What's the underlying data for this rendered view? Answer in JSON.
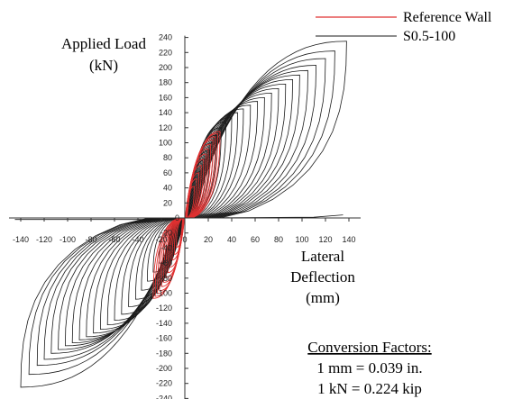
{
  "chart_data": {
    "type": "line",
    "title": "",
    "xlabel": [
      "Lateral",
      "Deflection",
      "(mm)"
    ],
    "ylabel": [
      "Applied Load",
      "(kN)"
    ],
    "xlim": [
      -150,
      150
    ],
    "ylim": [
      -240,
      240
    ],
    "x_ticks": [
      -140,
      -120,
      -100,
      -80,
      -60,
      -40,
      -20,
      0,
      20,
      40,
      60,
      80,
      100,
      120,
      140
    ],
    "y_ticks": [
      240,
      220,
      200,
      180,
      160,
      140,
      120,
      100,
      80,
      60,
      40,
      20,
      0,
      -20,
      -40,
      -60,
      -80,
      -100,
      -120,
      -140,
      -160,
      -180,
      -200,
      -220,
      -240
    ],
    "x_tick_labels": [
      "-140",
      "-120",
      "-100",
      "-80",
      "-60",
      "-40",
      "-20",
      "0",
      "20",
      "40",
      "60",
      "80",
      "100",
      "120",
      "140"
    ],
    "y_tick_labels": [
      "240",
      "220",
      "200",
      "180",
      "160",
      "140",
      "120",
      "100",
      "80",
      "60",
      "40",
      "20",
      "0",
      "-20",
      "-40",
      "-60",
      "-80",
      "-100",
      "-120",
      "-140",
      "-160",
      "-180",
      "-200",
      "-220",
      "-240"
    ],
    "grid": false,
    "legend_position": "top-right",
    "series": [
      {
        "name": "Reference Wall",
        "color": "#e03030",
        "peak_positive": [
          30,
          115
        ],
        "peak_negative": [
          -27,
          -108
        ],
        "cycles": [
          [
            8,
            42
          ],
          [
            10,
            52
          ],
          [
            12,
            60
          ],
          [
            14,
            70
          ],
          [
            16,
            78
          ],
          [
            18,
            85
          ],
          [
            20,
            92
          ],
          [
            22,
            98
          ],
          [
            24,
            104
          ],
          [
            26,
            108
          ],
          [
            28,
            112
          ],
          [
            30,
            115
          ]
        ]
      },
      {
        "name": "S0.5-100",
        "color": "#1a1a1a",
        "peak_positive": [
          138,
          235
        ],
        "peak_negative": [
          -140,
          -225
        ],
        "cycles": [
          [
            14,
            62
          ],
          [
            18,
            78
          ],
          [
            21,
            90
          ],
          [
            24,
            100
          ],
          [
            27,
            110
          ],
          [
            31,
            120
          ],
          [
            35,
            128
          ],
          [
            40,
            134
          ],
          [
            45,
            140
          ],
          [
            50,
            145
          ],
          [
            56,
            150
          ],
          [
            62,
            155
          ],
          [
            68,
            160
          ],
          [
            74,
            166
          ],
          [
            80,
            172
          ],
          [
            86,
            178
          ],
          [
            92,
            184
          ],
          [
            98,
            190
          ],
          [
            105,
            196
          ],
          [
            112,
            203
          ],
          [
            120,
            212
          ],
          [
            128,
            222
          ],
          [
            138,
            235
          ]
        ],
        "cycles_negative": [
          [
            -14,
            -40
          ],
          [
            -18,
            -50
          ],
          [
            -22,
            -60
          ],
          [
            -27,
            -72
          ],
          [
            -32,
            -84
          ],
          [
            -37,
            -96
          ],
          [
            -42,
            -108
          ],
          [
            -48,
            -118
          ],
          [
            -54,
            -128
          ],
          [
            -60,
            -136
          ],
          [
            -66,
            -142
          ],
          [
            -72,
            -148
          ],
          [
            -78,
            -153
          ],
          [
            -84,
            -158
          ],
          [
            -90,
            -162
          ],
          [
            -96,
            -166
          ],
          [
            -102,
            -170
          ],
          [
            -108,
            -175
          ],
          [
            -114,
            -180
          ],
          [
            -120,
            -188
          ],
          [
            -126,
            -196
          ],
          [
            -133,
            -208
          ],
          [
            -140,
            -225
          ]
        ]
      }
    ]
  },
  "conversion": {
    "heading": "Conversion Factors:",
    "line1": "1 mm = 0.039 in.",
    "line2": "1 kN = 0.224 kip"
  }
}
